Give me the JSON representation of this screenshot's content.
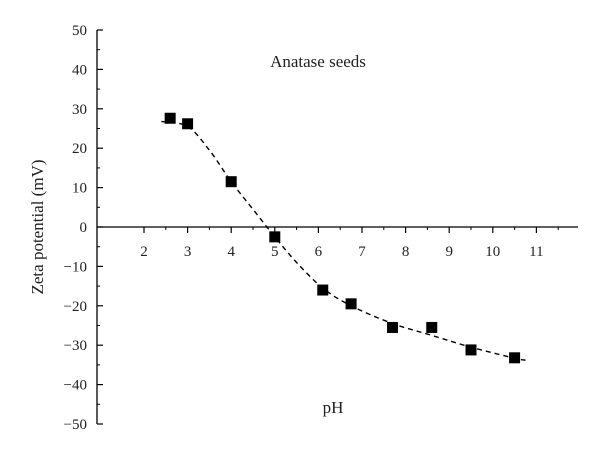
{
  "chart_data": {
    "type": "scatter",
    "title": "Anatase seeds",
    "xlabel": "pH",
    "ylabel": "Zeta potential (mV)",
    "xlim": [
      1.5,
      12
    ],
    "ylim": [
      -50,
      50
    ],
    "xticks": [
      2,
      3,
      4,
      5,
      6,
      7,
      8,
      9,
      10,
      11
    ],
    "yticks": [
      50,
      40,
      30,
      20,
      10,
      0,
      -10,
      -20,
      -30,
      -40,
      -50
    ],
    "ytick_labels": [
      "50",
      "40",
      "30",
      "20",
      "10",
      "0",
      "−10",
      "−20",
      "−30",
      "−40",
      "−50"
    ],
    "x_axis_position": "y=0",
    "grid": false,
    "series": [
      {
        "marker": "square",
        "color": "#000000",
        "points": [
          {
            "x": 2.6,
            "y": 27.6
          },
          {
            "x": 3.0,
            "y": 26.2
          },
          {
            "x": 4.0,
            "y": 11.5
          },
          {
            "x": 5.0,
            "y": -2.5
          },
          {
            "x": 6.1,
            "y": -16.0
          },
          {
            "x": 6.75,
            "y": -19.5
          },
          {
            "x": 7.7,
            "y": -25.5
          },
          {
            "x": 8.6,
            "y": -25.5
          },
          {
            "x": 9.5,
            "y": -31.2
          },
          {
            "x": 10.5,
            "y": -33.2
          }
        ]
      }
    ],
    "fit_curve": {
      "style": "dashed",
      "color": "#000000",
      "points": [
        {
          "x": 2.4,
          "y": 26.8
        },
        {
          "x": 3.0,
          "y": 25.5
        },
        {
          "x": 3.5,
          "y": 19.5
        },
        {
          "x": 4.0,
          "y": 11.5
        },
        {
          "x": 4.5,
          "y": 4.5
        },
        {
          "x": 5.0,
          "y": -2.5
        },
        {
          "x": 5.5,
          "y": -9.0
        },
        {
          "x": 6.1,
          "y": -15.5
        },
        {
          "x": 6.75,
          "y": -20.0
        },
        {
          "x": 7.7,
          "y": -24.5
        },
        {
          "x": 8.6,
          "y": -27.5
        },
        {
          "x": 9.5,
          "y": -30.5
        },
        {
          "x": 10.5,
          "y": -33.3
        },
        {
          "x": 10.75,
          "y": -33.8
        }
      ]
    }
  }
}
